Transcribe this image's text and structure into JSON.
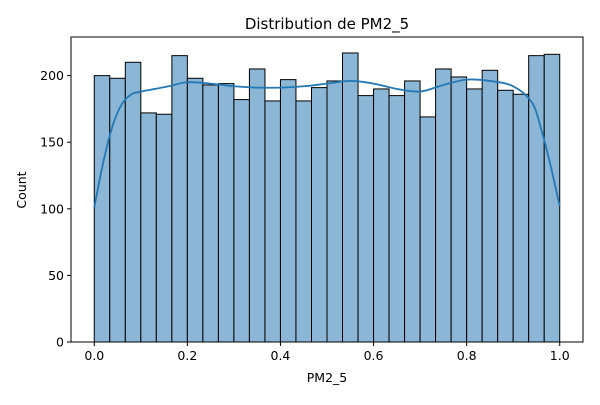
{
  "chart_data": {
    "type": "bar",
    "title": "Distribution de PM2_5",
    "xlabel": "PM2_5",
    "ylabel": "Count",
    "xlim": [
      -0.05,
      1.05
    ],
    "ylim": [
      0,
      229
    ],
    "xticks": [
      0.0,
      0.2,
      0.4,
      0.6,
      0.8,
      1.0
    ],
    "xtick_labels": [
      "0.0",
      "0.2",
      "0.4",
      "0.6",
      "0.8",
      "1.0"
    ],
    "yticks": [
      0,
      50,
      100,
      150,
      200
    ],
    "ytick_labels": [
      "0",
      "50",
      "100",
      "150",
      "200"
    ],
    "grid": false,
    "bin_edges": [
      0.0,
      0.0333,
      0.0667,
      0.1,
      0.1333,
      0.1667,
      0.2,
      0.2333,
      0.2667,
      0.3,
      0.3333,
      0.3667,
      0.4,
      0.4333,
      0.4667,
      0.5,
      0.5333,
      0.5667,
      0.6,
      0.6333,
      0.6667,
      0.7,
      0.7333,
      0.7667,
      0.8,
      0.8333,
      0.8667,
      0.9,
      0.9333,
      0.9667,
      1.0
    ],
    "values": [
      200,
      198,
      210,
      172,
      171,
      215,
      198,
      193,
      194,
      182,
      205,
      181,
      197,
      181,
      191,
      196,
      217,
      185,
      190,
      185,
      196,
      169,
      205,
      199,
      190,
      204,
      189,
      186,
      215,
      216
    ],
    "kde": {
      "x": [
        0.0,
        0.02,
        0.04,
        0.06,
        0.08,
        0.1,
        0.13,
        0.16,
        0.2,
        0.25,
        0.3,
        0.35,
        0.4,
        0.45,
        0.5,
        0.55,
        0.6,
        0.65,
        0.7,
        0.75,
        0.8,
        0.85,
        0.9,
        0.94,
        0.96,
        0.98,
        1.0
      ],
      "y": [
        101,
        136,
        163,
        179,
        186,
        188,
        190,
        192,
        195,
        194,
        192,
        191,
        191,
        192,
        194,
        196,
        194,
        190,
        188,
        193,
        197,
        196,
        192,
        180,
        160,
        133,
        102
      ]
    },
    "colors": {
      "bar_fill": "#8cb6d6",
      "bar_edge": "#000000",
      "kde_line": "#2478b4",
      "axis": "#000000"
    }
  }
}
